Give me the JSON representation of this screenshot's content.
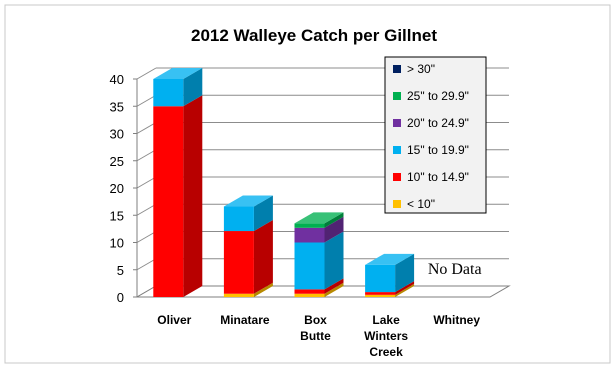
{
  "chart_data": {
    "type": "bar",
    "stacked": true,
    "three_d": true,
    "title": "2012 Walleye Catch per Gillnet",
    "categories": [
      "Oliver",
      "Minatare",
      "Box Butte",
      "Lake Winters Creek",
      "Whitney"
    ],
    "category_label_lines": [
      [
        "Oliver"
      ],
      [
        "Minatare"
      ],
      [
        "Box",
        "Butte"
      ],
      [
        "Lake",
        "Winters",
        "Creek"
      ],
      [
        "Whitney"
      ]
    ],
    "ylim": [
      0,
      40
    ],
    "yticks": [
      0,
      5,
      10,
      15,
      20,
      25,
      30,
      35,
      40
    ],
    "grid": true,
    "legend_position": "top-right",
    "series": [
      {
        "name": "< 10\"",
        "color": "#FFC000",
        "values": [
          0,
          0.6,
          0.6,
          0.4,
          0
        ]
      },
      {
        "name": "10\" to 14.9\"",
        "color": "#FF0000",
        "values": [
          35,
          11.5,
          0.8,
          0.5,
          0
        ]
      },
      {
        "name": "15\" to 19.9\"",
        "color": "#00B0F0",
        "values": [
          5,
          4.5,
          8.6,
          5,
          0
        ]
      },
      {
        "name": "20\" to 24.9\"",
        "color": "#7030A0",
        "values": [
          0,
          0,
          2.7,
          0,
          0
        ]
      },
      {
        "name": "25\" to 29.9\"",
        "color": "#00B050",
        "values": [
          0,
          0,
          0.8,
          0,
          0
        ]
      },
      {
        "name": "> 30\"",
        "color": "#002060",
        "values": [
          0,
          0,
          0,
          0,
          0
        ]
      }
    ],
    "annotations": [
      {
        "text": "No Data",
        "category": "Whitney"
      }
    ]
  }
}
